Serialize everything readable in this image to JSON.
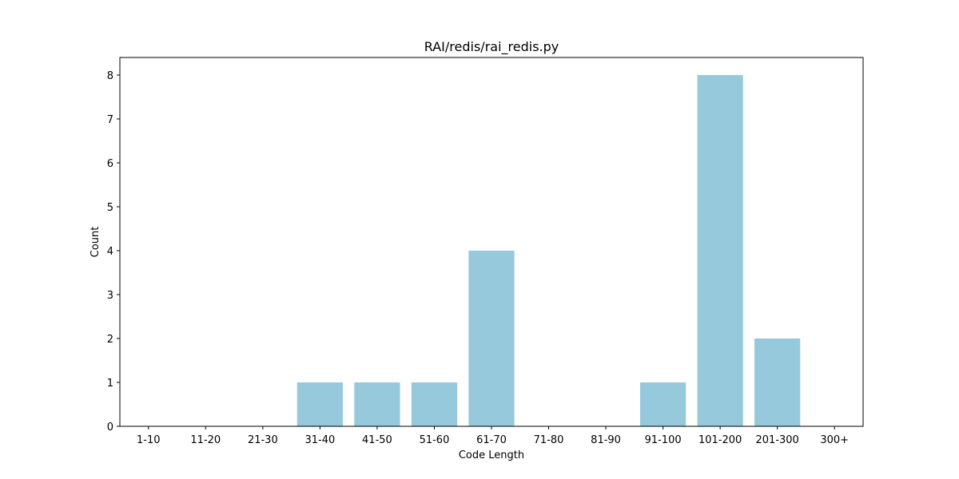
{
  "chart_data": {
    "type": "bar",
    "title": "RAI/redis/rai_redis.py",
    "xlabel": "Code Length",
    "ylabel": "Count",
    "categories": [
      "1-10",
      "11-20",
      "21-30",
      "31-40",
      "41-50",
      "51-60",
      "61-70",
      "71-80",
      "81-90",
      "91-100",
      "101-200",
      "201-300",
      "300+"
    ],
    "values": [
      0,
      0,
      0,
      1,
      1,
      1,
      4,
      0,
      0,
      1,
      8,
      2,
      0
    ],
    "ylim": [
      0,
      8.4
    ],
    "yticks": [
      0,
      1,
      2,
      3,
      4,
      5,
      6,
      7,
      8
    ],
    "grid": false,
    "bar_color": "#96c9dc"
  }
}
